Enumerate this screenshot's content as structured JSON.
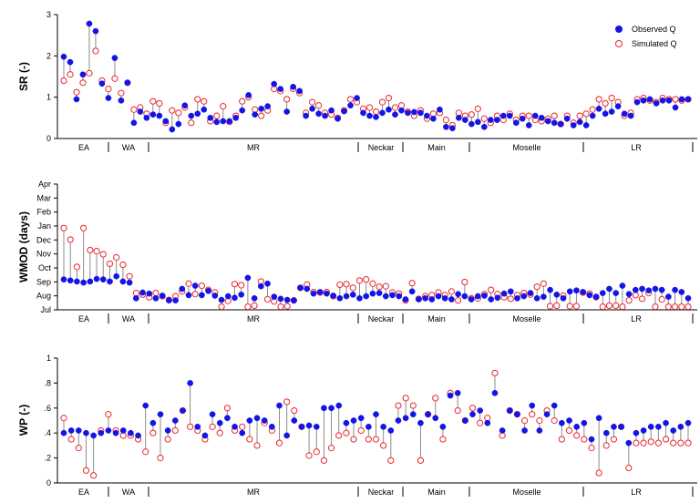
{
  "chart_data": [
    {
      "type": "scatter",
      "ylabel": "SR (-)",
      "ylim": [
        0,
        3
      ],
      "yticks": [
        "0",
        "1",
        "2",
        "3"
      ],
      "regions": [
        "EA",
        "WA",
        "MR",
        "Neckar",
        "Main",
        "Moselle",
        "LR"
      ],
      "legend": {
        "position": "top-right",
        "observed": "Observed Q",
        "simulated": "Simulated Q"
      },
      "series": [
        {
          "name": "Observed Q",
          "values": [
            1.98,
            1.85,
            0.95,
            1.55,
            2.78,
            2.6,
            1.33,
            0.98,
            1.95,
            0.92,
            1.35,
            0.38,
            0.65,
            0.5,
            0.58,
            0.55,
            0.42,
            0.22,
            0.35,
            0.8,
            0.55,
            0.6,
            0.7,
            0.5,
            0.4,
            0.42,
            0.42,
            0.5,
            0.68,
            1.05,
            0.58,
            0.72,
            0.78,
            1.32,
            1.2,
            0.65,
            1.25,
            1.15,
            0.55,
            0.72,
            0.6,
            0.55,
            0.68,
            0.48,
            0.66,
            0.8,
            0.98,
            0.62,
            0.55,
            0.52,
            0.62,
            0.7,
            0.58,
            0.68,
            0.62,
            0.64,
            0.62,
            0.55,
            0.48,
            0.7,
            0.28,
            0.25,
            0.5,
            0.45,
            0.35,
            0.4,
            0.28,
            0.45,
            0.45,
            0.55,
            0.55,
            0.38,
            0.48,
            0.32,
            0.55,
            0.5,
            0.42,
            0.38,
            0.35,
            0.48,
            0.32,
            0.4,
            0.32,
            0.55,
            0.72,
            0.6,
            0.65,
            0.78,
            0.6,
            0.55,
            0.88,
            0.92,
            0.95,
            0.85,
            0.92,
            0.92,
            0.75,
            0.95,
            0.95
          ]
        },
        {
          "name": "Simulated Q",
          "values": [
            1.4,
            1.55,
            1.12,
            1.35,
            1.58,
            2.12,
            1.4,
            1.2,
            1.45,
            1.1,
            1.35,
            0.7,
            0.75,
            0.6,
            0.9,
            0.85,
            0.38,
            0.68,
            0.62,
            0.75,
            0.38,
            0.95,
            0.9,
            0.42,
            0.55,
            0.78,
            0.4,
            0.55,
            0.9,
            1.0,
            0.7,
            0.55,
            0.68,
            1.2,
            1.15,
            0.95,
            1.2,
            1.1,
            0.62,
            0.88,
            0.8,
            0.62,
            0.58,
            0.5,
            0.68,
            0.95,
            0.88,
            0.72,
            0.75,
            0.65,
            0.88,
            0.98,
            0.75,
            0.8,
            0.65,
            0.55,
            0.68,
            0.48,
            0.6,
            0.62,
            0.45,
            0.32,
            0.62,
            0.55,
            0.58,
            0.72,
            0.48,
            0.38,
            0.55,
            0.45,
            0.6,
            0.45,
            0.55,
            0.55,
            0.45,
            0.42,
            0.48,
            0.55,
            0.35,
            0.55,
            0.38,
            0.55,
            0.6,
            0.7,
            0.95,
            0.85,
            0.98,
            0.88,
            0.55,
            0.62,
            0.95,
            0.98,
            0.92,
            0.88,
            0.98,
            0.95,
            0.95,
            0.92,
            0.95
          ]
        }
      ]
    },
    {
      "type": "scatter",
      "ylabel": "WMOD (days)",
      "ylim": [
        0,
        12
      ],
      "yticks": [
        "Jul",
        "Aug",
        "Sep",
        "Oct",
        "Nov",
        "Dec",
        "Jan",
        "Feb",
        "Mar",
        "Apr"
      ],
      "regions": [
        "EA",
        "WA",
        "MR",
        "Neckar",
        "Main",
        "Moselle",
        "LR"
      ],
      "series": [
        {
          "name": "Observed Q",
          "values": [
            2.9,
            2.8,
            2.7,
            2.6,
            2.7,
            2.95,
            2.9,
            2.7,
            3.2,
            2.7,
            2.6,
            1.1,
            1.65,
            1.55,
            1.1,
            1.35,
            0.9,
            0.9,
            2.0,
            1.4,
            2.3,
            1.4,
            1.8,
            1.35,
            0.95,
            1.3,
            1.15,
            1.45,
            3.05,
            1.1,
            2.25,
            2.5,
            1.25,
            1.05,
            0.95,
            0.9,
            2.1,
            2.0,
            1.55,
            1.7,
            1.55,
            1.35,
            1.1,
            1.3,
            1.45,
            1.1,
            1.3,
            1.55,
            1.6,
            1.3,
            1.4,
            1.3,
            1.0,
            1.75,
            1.0,
            1.1,
            1.0,
            1.3,
            1.1,
            1.0,
            1.5,
            1.3,
            1.0,
            1.3,
            1.35,
            1.0,
            1.15,
            1.55,
            1.75,
            1.1,
            1.3,
            1.6,
            1.1,
            1.25,
            1.9,
            1.45,
            1.1,
            1.75,
            1.85,
            1.7,
            1.4,
            1.25,
            1.6,
            2.0,
            1.6,
            2.3,
            1.5,
            1.9,
            2.0,
            1.85,
            2.0,
            1.9,
            1.25,
            1.9,
            1.7,
            1.1
          ]
        },
        {
          "name": "Simulated Q",
          "values": [
            7.8,
            6.7,
            4.1,
            7.8,
            5.7,
            5.6,
            5.3,
            4.4,
            5.0,
            4.3,
            3.2,
            1.6,
            1.45,
            1.2,
            1.6,
            1.3,
            0.95,
            1.3,
            1.75,
            2.5,
            1.5,
            2.3,
            1.9,
            1.65,
            0.3,
            0.85,
            2.45,
            2.35,
            0.3,
            0.4,
            2.7,
            1.0,
            0.8,
            0.3,
            0.35,
            0.9,
            2.1,
            2.4,
            1.7,
            1.65,
            1.7,
            1.3,
            2.4,
            2.45,
            2.1,
            2.8,
            2.9,
            2.5,
            2.2,
            2.25,
            1.65,
            1.55,
            0.9,
            2.55,
            1.05,
            1.3,
            1.4,
            1.65,
            1.4,
            1.75,
            0.9,
            2.65,
            1.1,
            1.1,
            1.5,
            1.9,
            1.5,
            1.2,
            1.05,
            1.4,
            1.6,
            1.45,
            2.2,
            2.5,
            0.35,
            0.4,
            1.35,
            0.35,
            0.35,
            1.65,
            1.55,
            1.2,
            0.3,
            0.4,
            0.4,
            0.3,
            0.9,
            1.4,
            1.05,
            1.6,
            0.3,
            1.0,
            0.3,
            0.3,
            0.3,
            0.3
          ]
        }
      ]
    },
    {
      "type": "scatter",
      "ylabel": "WP (-)",
      "ylim": [
        0,
        1
      ],
      "yticks": [
        "0",
        ".2",
        ".4",
        ".6",
        ".8",
        "1"
      ],
      "regions": [
        "EA",
        "WA",
        "MR",
        "Neckar",
        "Main",
        "Moselle",
        "LR"
      ],
      "series": [
        {
          "name": "Observed Q",
          "values": [
            0.4,
            0.42,
            0.42,
            0.4,
            0.38,
            0.4,
            0.42,
            0.4,
            0.42,
            0.4,
            0.38,
            0.62,
            0.48,
            0.55,
            0.42,
            0.5,
            0.58,
            0.8,
            0.45,
            0.38,
            0.55,
            0.48,
            0.52,
            0.45,
            0.4,
            0.5,
            0.52,
            0.5,
            0.45,
            0.62,
            0.38,
            0.5,
            0.45,
            0.46,
            0.45,
            0.6,
            0.6,
            0.62,
            0.48,
            0.5,
            0.52,
            0.45,
            0.55,
            0.45,
            0.42,
            0.5,
            0.52,
            0.55,
            0.48,
            0.55,
            0.52,
            0.45,
            0.7,
            0.72,
            0.5,
            0.55,
            0.58,
            0.48,
            0.72,
            0.42,
            0.58,
            0.55,
            0.42,
            0.62,
            0.42,
            0.55,
            0.62,
            0.48,
            0.5,
            0.45,
            0.48,
            0.35,
            0.52,
            0.4,
            0.45,
            0.45,
            0.32,
            0.4,
            0.42,
            0.45,
            0.45,
            0.48,
            0.42,
            0.45,
            0.48
          ]
        },
        {
          "name": "Simulated Q",
          "values": [
            0.52,
            0.35,
            0.28,
            0.1,
            0.06,
            0.42,
            0.55,
            0.42,
            0.38,
            0.38,
            0.35,
            0.25,
            0.4,
            0.2,
            0.35,
            0.42,
            0.58,
            0.45,
            0.42,
            0.35,
            0.45,
            0.4,
            0.6,
            0.42,
            0.45,
            0.35,
            0.3,
            0.48,
            0.42,
            0.32,
            0.65,
            0.58,
            0.45,
            0.22,
            0.25,
            0.18,
            0.28,
            0.38,
            0.4,
            0.35,
            0.42,
            0.35,
            0.35,
            0.3,
            0.18,
            0.62,
            0.68,
            0.62,
            0.18,
            0.55,
            0.68,
            0.35,
            0.72,
            0.58,
            0.5,
            0.6,
            0.48,
            0.52,
            0.88,
            0.38,
            0.58,
            0.55,
            0.5,
            0.55,
            0.5,
            0.58,
            0.5,
            0.35,
            0.42,
            0.38,
            0.35,
            0.28,
            0.08,
            0.3,
            0.35,
            0.45,
            0.12,
            0.32,
            0.32,
            0.33,
            0.32,
            0.35,
            0.32,
            0.32,
            0.32
          ]
        }
      ]
    }
  ]
}
